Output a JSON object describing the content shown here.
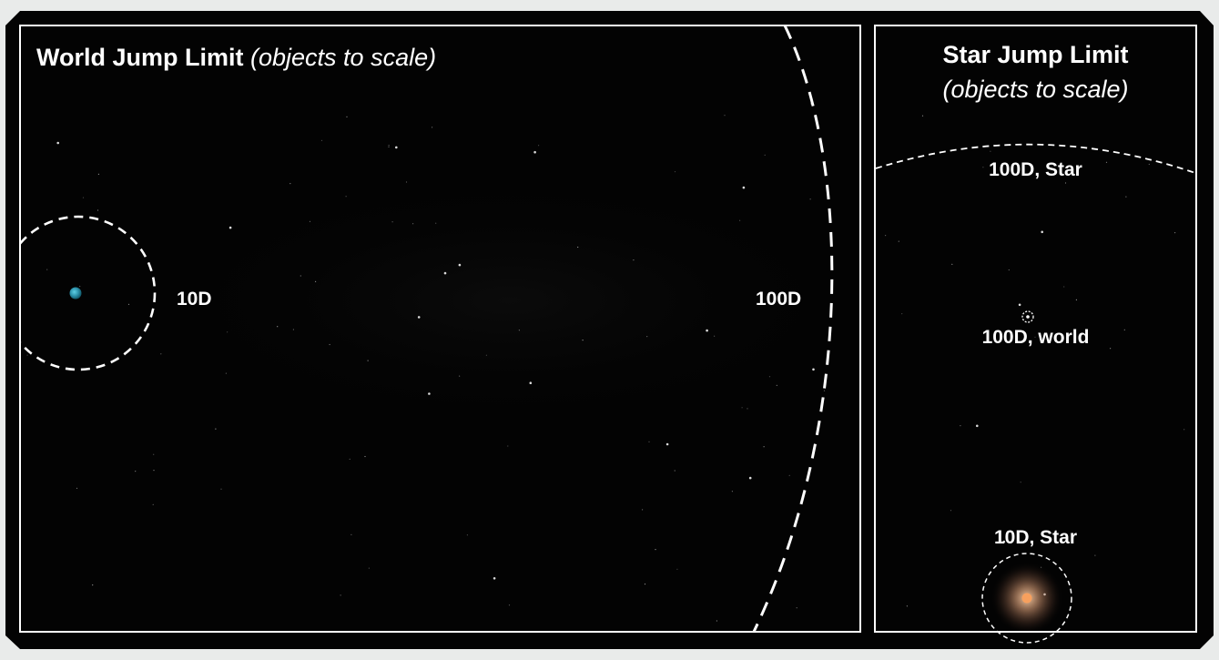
{
  "colors": {
    "background": "#e9ebea",
    "space": "#030303",
    "border": "#ffffff",
    "world": "#2a8fa8",
    "star": "#f7a05e"
  },
  "world_panel": {
    "title": "World Jump Limit",
    "subtitle": "(objects to scale)",
    "label_10d": "10D",
    "label_100d": "100D"
  },
  "star_panel": {
    "title": "Star Jump Limit",
    "subtitle": "(objects to scale)",
    "label_100d_star": "100D, Star",
    "label_100d_world": "100D, world",
    "label_10d_star": "10D, Star"
  }
}
